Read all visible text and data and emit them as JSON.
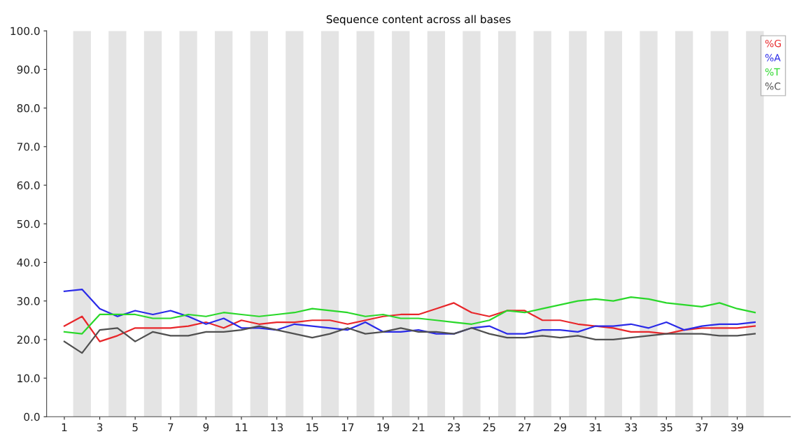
{
  "chart_data": {
    "type": "line",
    "title": "Sequence content across all bases",
    "x": [
      1,
      2,
      3,
      4,
      5,
      6,
      7,
      8,
      9,
      10,
      11,
      12,
      13,
      14,
      15,
      16,
      17,
      18,
      19,
      20,
      21,
      22,
      23,
      24,
      25,
      26,
      27,
      28,
      29,
      30,
      31,
      32,
      33,
      34,
      35,
      36,
      37,
      38,
      39,
      40
    ],
    "series": [
      {
        "name": "%G",
        "color": "#e8262a",
        "values": [
          23.5,
          26,
          19.5,
          21,
          23,
          23,
          23,
          23.5,
          24.5,
          23,
          25,
          24,
          24.5,
          24.5,
          25,
          25,
          24,
          25,
          26,
          26.5,
          26.5,
          28,
          29.5,
          27,
          26,
          27.5,
          27.5,
          25,
          25,
          24,
          23.5,
          23,
          22,
          22,
          21.5,
          22.5,
          23,
          23,
          23,
          23.5
        ]
      },
      {
        "name": "%A",
        "color": "#2a2ae8",
        "values": [
          32.5,
          33,
          28,
          26,
          27.5,
          26.5,
          27.5,
          26,
          24,
          25.5,
          23,
          23,
          22.5,
          24,
          23.5,
          23,
          22.5,
          24.5,
          22,
          22,
          22.5,
          21.5,
          21.5,
          23,
          23.5,
          21.5,
          21.5,
          22.5,
          22.5,
          22,
          23.5,
          23.5,
          24,
          23,
          24.5,
          22.5,
          23.5,
          24,
          24,
          24.5
        ]
      },
      {
        "name": "%T",
        "color": "#2ad82a",
        "values": [
          22,
          21.5,
          26.5,
          26.5,
          26.5,
          25.5,
          25.5,
          26.5,
          26,
          27,
          26.5,
          26,
          26.5,
          27,
          28,
          27.5,
          27,
          26,
          26.5,
          25.5,
          25.5,
          25,
          24.5,
          24,
          25,
          27.5,
          27,
          28,
          29,
          30,
          30.5,
          30,
          31,
          30.5,
          29.5,
          29,
          28.5,
          29.5,
          28,
          27
        ]
      },
      {
        "name": "%C",
        "color": "#505050",
        "values": [
          19.5,
          16.5,
          22.5,
          23,
          19.5,
          22,
          21,
          21,
          22,
          22,
          22.5,
          23.5,
          22.5,
          21.5,
          20.5,
          21.5,
          23,
          21.5,
          22,
          23,
          22,
          22,
          21.5,
          23,
          21.5,
          20.5,
          20.5,
          21,
          20.5,
          21,
          20,
          20,
          20.5,
          21,
          21.5,
          21.5,
          21.5,
          21,
          21,
          21.5
        ]
      }
    ],
    "xlim": [
      0,
      42
    ],
    "xticks": [
      1,
      3,
      5,
      7,
      9,
      11,
      13,
      15,
      17,
      19,
      21,
      23,
      25,
      27,
      29,
      31,
      33,
      35,
      37,
      39
    ],
    "ylim": [
      0,
      100
    ],
    "yticks": [
      {
        "value": 0,
        "label": "0.0"
      },
      {
        "value": 10,
        "label": "10.0"
      },
      {
        "value": 20,
        "label": "20.0"
      },
      {
        "value": 30,
        "label": "30.0"
      },
      {
        "value": 40,
        "label": "40.0"
      },
      {
        "value": 50,
        "label": "50.0"
      },
      {
        "value": 60,
        "label": "60.0"
      },
      {
        "value": 70,
        "label": "70.0"
      },
      {
        "value": 80,
        "label": "80.0"
      },
      {
        "value": 90,
        "label": "90.0"
      },
      {
        "value": 100,
        "label": "100.0"
      }
    ],
    "bands": [
      {
        "axis": "x",
        "from": 1.5,
        "to": 2.5,
        "color": "#e4e4e4"
      },
      {
        "axis": "x",
        "from": 3.5,
        "to": 4.5,
        "color": "#e4e4e4"
      },
      {
        "axis": "x",
        "from": 5.5,
        "to": 6.5,
        "color": "#e4e4e4"
      },
      {
        "axis": "x",
        "from": 7.5,
        "to": 8.5,
        "color": "#e4e4e4"
      },
      {
        "axis": "x",
        "from": 9.5,
        "to": 10.5,
        "color": "#e4e4e4"
      },
      {
        "axis": "x",
        "from": 11.5,
        "to": 12.5,
        "color": "#e4e4e4"
      },
      {
        "axis": "x",
        "from": 13.5,
        "to": 14.5,
        "color": "#e4e4e4"
      },
      {
        "axis": "x",
        "from": 15.5,
        "to": 16.5,
        "color": "#e4e4e4"
      },
      {
        "axis": "x",
        "from": 17.5,
        "to": 18.5,
        "color": "#e4e4e4"
      },
      {
        "axis": "x",
        "from": 19.5,
        "to": 20.5,
        "color": "#e4e4e4"
      },
      {
        "axis": "x",
        "from": 21.5,
        "to": 22.5,
        "color": "#e4e4e4"
      },
      {
        "axis": "x",
        "from": 23.5,
        "to": 24.5,
        "color": "#e4e4e4"
      },
      {
        "axis": "x",
        "from": 25.5,
        "to": 26.5,
        "color": "#e4e4e4"
      },
      {
        "axis": "x",
        "from": 27.5,
        "to": 28.5,
        "color": "#e4e4e4"
      },
      {
        "axis": "x",
        "from": 29.5,
        "to": 30.5,
        "color": "#e4e4e4"
      },
      {
        "axis": "x",
        "from": 31.5,
        "to": 32.5,
        "color": "#e4e4e4"
      },
      {
        "axis": "x",
        "from": 33.5,
        "to": 34.5,
        "color": "#e4e4e4"
      },
      {
        "axis": "x",
        "from": 35.5,
        "to": 36.5,
        "color": "#e4e4e4"
      },
      {
        "axis": "x",
        "from": 37.5,
        "to": 38.5,
        "color": "#e4e4e4"
      },
      {
        "axis": "x",
        "from": 39.5,
        "to": 40.5,
        "color": "#e4e4e4"
      }
    ],
    "grid": false,
    "legend": "top right",
    "marker": "none",
    "line_style": "solid"
  }
}
